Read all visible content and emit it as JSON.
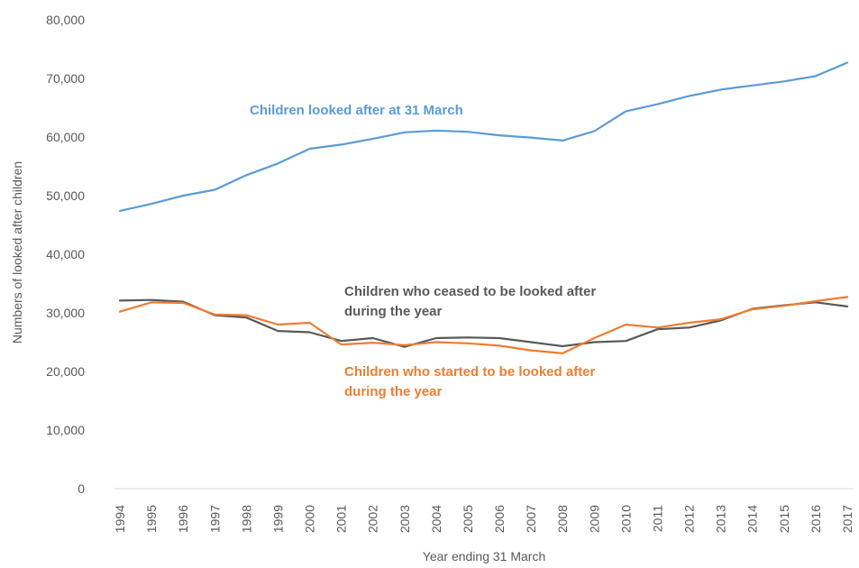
{
  "chart_data": {
    "type": "line",
    "xlabel": "Year ending 31 March",
    "ylabel": "Numbers of looked after children",
    "ylim": [
      0,
      80000
    ],
    "yticks": [
      "0",
      "10,000",
      "20,000",
      "30,000",
      "40,000",
      "50,000",
      "60,000",
      "70,000",
      "80,000"
    ],
    "grid": false,
    "legend": "none",
    "categories": [
      "1994",
      "1995",
      "1996",
      "1997",
      "1998",
      "1999",
      "2000",
      "2001",
      "2002",
      "2003",
      "2004",
      "2005",
      "2006",
      "2007",
      "2008",
      "2009",
      "2010",
      "2011",
      "2012",
      "2013",
      "2014",
      "2015",
      "2016",
      "2017"
    ],
    "series": [
      {
        "name": "Children looked after at 31 March",
        "label_lines": [
          "Children looked after at 31 March"
        ],
        "color": "#5b9bd5",
        "values": [
          47400,
          48600,
          50000,
          51000,
          53500,
          55500,
          58000,
          58700,
          59700,
          60800,
          61100,
          60900,
          60300,
          59900,
          59400,
          61000,
          64400,
          65600,
          67000,
          68100,
          68800,
          69500,
          70400,
          72700
        ]
      },
      {
        "name": "Children who ceased to be looked after during the year",
        "label_lines": [
          "Children who ceased to be looked after",
          "during the year"
        ],
        "color": "#595959",
        "values": [
          32100,
          32200,
          31900,
          29600,
          29200,
          26900,
          26700,
          25200,
          25700,
          24200,
          25700,
          25800,
          25700,
          25000,
          24300,
          25000,
          25200,
          27200,
          27500,
          28700,
          30700,
          31300,
          31800,
          31100
        ]
      },
      {
        "name": "Children who started to be looked after during the year",
        "label_lines": [
          "Children who started to be looked after",
          "during the year"
        ],
        "color": "#ed7d31",
        "values": [
          30200,
          31800,
          31700,
          29700,
          29600,
          28000,
          28300,
          24600,
          24900,
          24500,
          25000,
          24800,
          24400,
          23600,
          23100,
          25700,
          28000,
          27500,
          28300,
          28900,
          30600,
          31200,
          32000,
          32700
        ]
      }
    ]
  }
}
